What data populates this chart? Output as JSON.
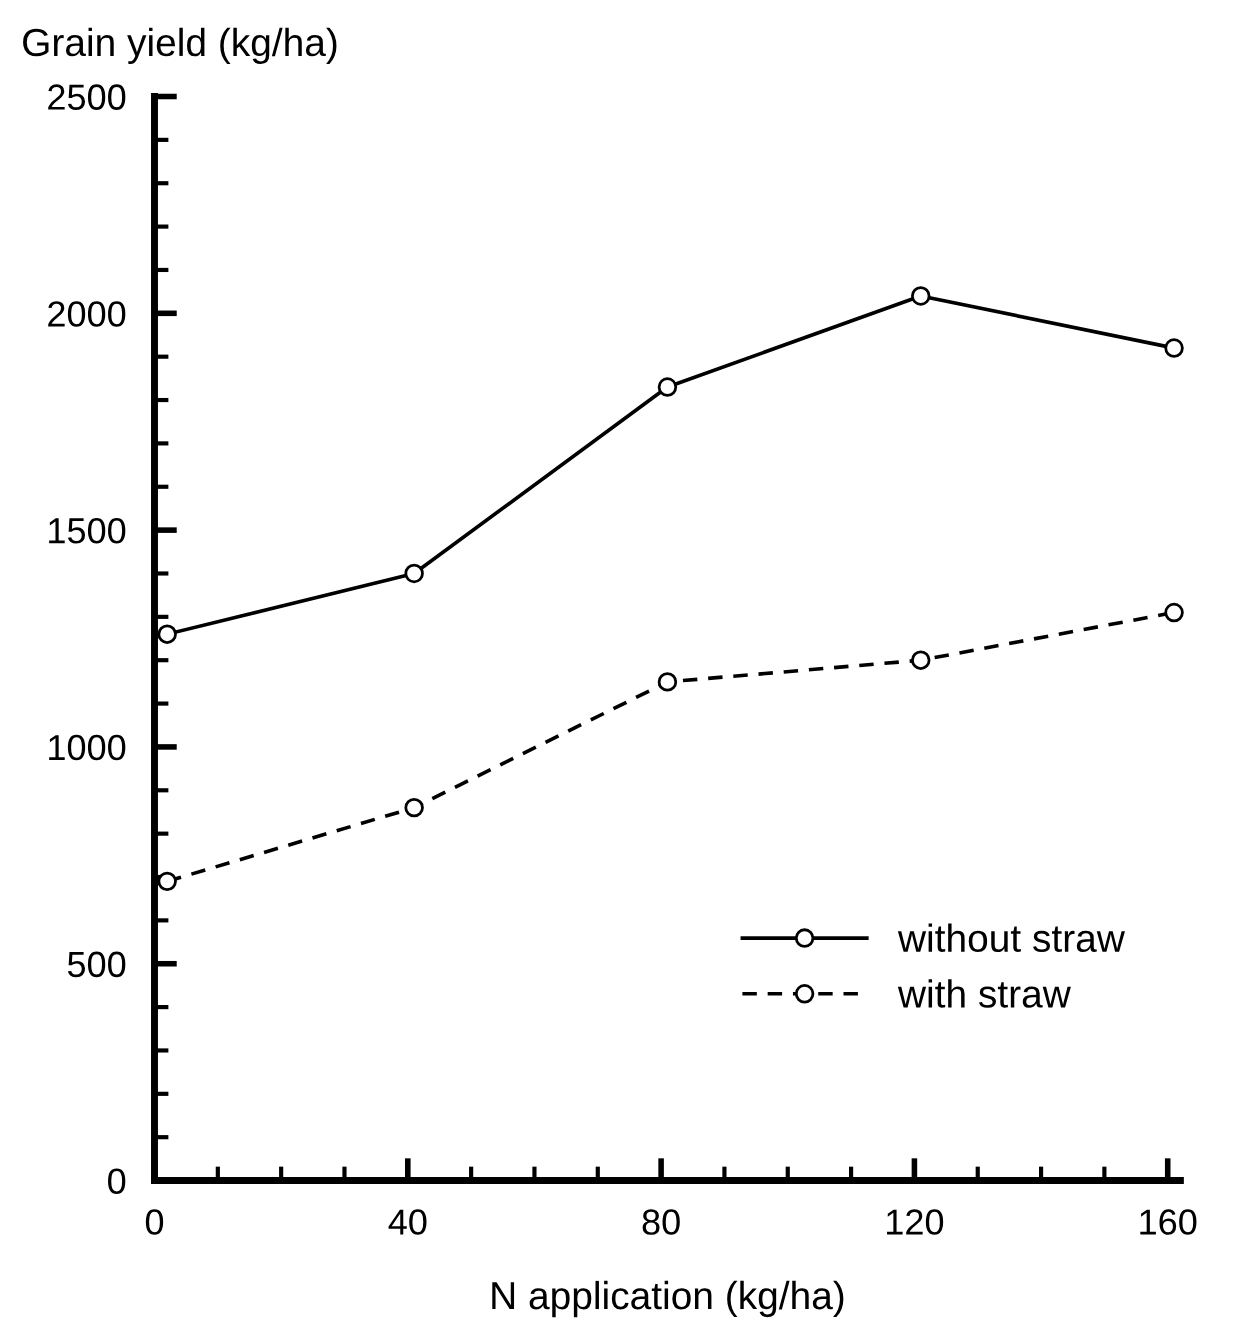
{
  "chart_data": {
    "type": "line",
    "ylabel": "Grain yield (kg/ha)",
    "xlabel": "N application (kg/ha)",
    "xlim": [
      0,
      162
    ],
    "xticks": [
      0,
      40,
      80,
      120,
      160
    ],
    "ylim": [
      0,
      2500
    ],
    "yticks": [
      0,
      500,
      1000,
      1500,
      2000,
      2500
    ],
    "grid": false,
    "legend": "lower right",
    "marker": "circle",
    "series": [
      {
        "name": "without straw",
        "color": "#000000",
        "line_style": "solid",
        "x": [
          2,
          41,
          81,
          121,
          161
        ],
        "values": [
          1260,
          1400,
          1830,
          2040,
          1920
        ]
      },
      {
        "name": "with straw",
        "color": "#000000",
        "line_style": "dashed",
        "x": [
          2,
          41,
          81,
          121,
          161
        ],
        "values": [
          690,
          860,
          1150,
          1200,
          1310
        ]
      }
    ]
  }
}
